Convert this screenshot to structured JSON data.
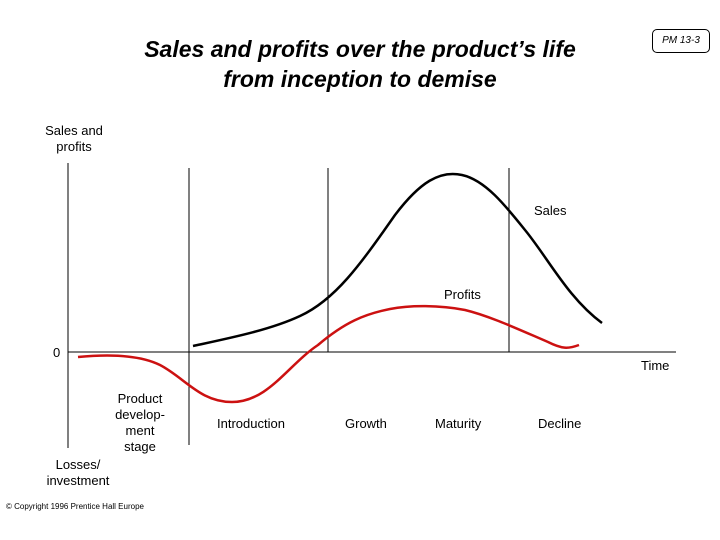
{
  "title": {
    "line1": "Sales and profits over the product’s life",
    "line2": "from inception to demise"
  },
  "badge": "PM 13-3",
  "axis": {
    "y_label_top": [
      "Sales and",
      "profits"
    ],
    "zero": "0",
    "x_label": "Time",
    "y_label_bottom": [
      "Losses/",
      "investment"
    ]
  },
  "stages": {
    "product_development": [
      "Product",
      "develop-",
      "ment",
      "stage"
    ],
    "introduction": "Introduction",
    "growth": "Growth",
    "maturity": "Maturity",
    "decline": "Decline"
  },
  "curves": {
    "sales": {
      "label": "Sales",
      "color": "#000000"
    },
    "profits": {
      "label": "Profits",
      "color": "#cc1111"
    }
  },
  "copyright": "© Copyright 1996 Prentice Hall Europe"
}
